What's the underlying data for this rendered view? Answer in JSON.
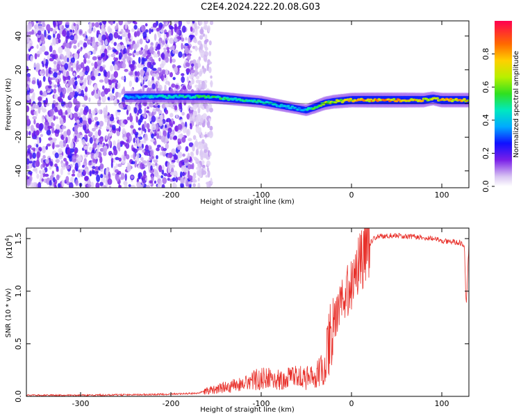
{
  "title": "C2E4.2024.222.20.08.G03",
  "chart_data": [
    {
      "type": "heatmap",
      "xlabel": "Height of straight line (km)",
      "ylabel": "Frequency (Hz)",
      "xlim": [
        -360,
        130
      ],
      "ylim": [
        -50,
        49
      ],
      "xticks": [
        -300,
        -200,
        -100,
        0,
        100
      ],
      "yticks": [
        -40,
        -20,
        0,
        20,
        40
      ],
      "colorbar": {
        "label": "Normalized spectral amplitude",
        "range": [
          0,
          1
        ],
        "ticks": [
          "0.0",
          "0.2",
          "0.4",
          "0.6",
          "0.8"
        ]
      },
      "ridge": {
        "x": [
          -250,
          -220,
          -180,
          -160,
          -140,
          -120,
          -100,
          -80,
          -60,
          -50,
          -40,
          -30,
          -20,
          -10,
          0,
          20,
          40,
          60,
          80,
          90,
          100,
          110,
          130
        ],
        "freq": [
          4,
          4,
          4,
          4,
          3,
          2,
          1,
          -1,
          -3,
          -4,
          -2,
          0,
          1,
          1.5,
          2,
          2,
          2,
          2,
          2,
          3,
          2,
          2,
          2
        ],
        "amplitude": [
          0.4,
          0.45,
          0.5,
          0.55,
          0.55,
          0.5,
          0.5,
          0.45,
          0.4,
          0.45,
          0.6,
          0.65,
          0.7,
          0.75,
          0.8,
          0.85,
          0.85,
          0.85,
          0.8,
          0.7,
          0.8,
          0.8,
          0.8
        ]
      },
      "noise_region_x": [
        -360,
        -175
      ]
    },
    {
      "type": "line",
      "xlabel": "Height of straight line (km)",
      "ylabel": "SNR (10 * v/v)",
      "scale_label": "(x10",
      "scale_exponent": "4",
      "scale_suffix": ")",
      "xlim": [
        -360,
        130
      ],
      "ylim": [
        0,
        1.6
      ],
      "xticks": [
        -300,
        -200,
        -100,
        0,
        100
      ],
      "yticks": [
        "0.0",
        "0.5",
        "1.0",
        "1.5"
      ],
      "series": [
        {
          "color": "#e8302a",
          "x": [
            -360,
            -300,
            -250,
            -200,
            -170,
            -160,
            -150,
            -140,
            -130,
            -120,
            -110,
            -100,
            -90,
            -80,
            -70,
            -60,
            -50,
            -40,
            -30,
            -25,
            -20,
            -15,
            -10,
            -5,
            0,
            5,
            10,
            15,
            20,
            25,
            30,
            40,
            50,
            60,
            70,
            80,
            90,
            100,
            110,
            120,
            125,
            127,
            130
          ],
          "y": [
            0.01,
            0.01,
            0.015,
            0.02,
            0.03,
            0.06,
            0.08,
            0.1,
            0.12,
            0.14,
            0.18,
            0.2,
            0.2,
            0.18,
            0.2,
            0.22,
            0.2,
            0.25,
            0.3,
            0.6,
            0.7,
            0.8,
            0.9,
            1.0,
            1.05,
            1.15,
            1.3,
            1.4,
            1.45,
            1.5,
            1.52,
            1.53,
            1.53,
            1.52,
            1.52,
            1.51,
            1.5,
            1.48,
            1.47,
            1.46,
            1.43,
            0.85,
            1.45
          ]
        }
      ]
    }
  ]
}
